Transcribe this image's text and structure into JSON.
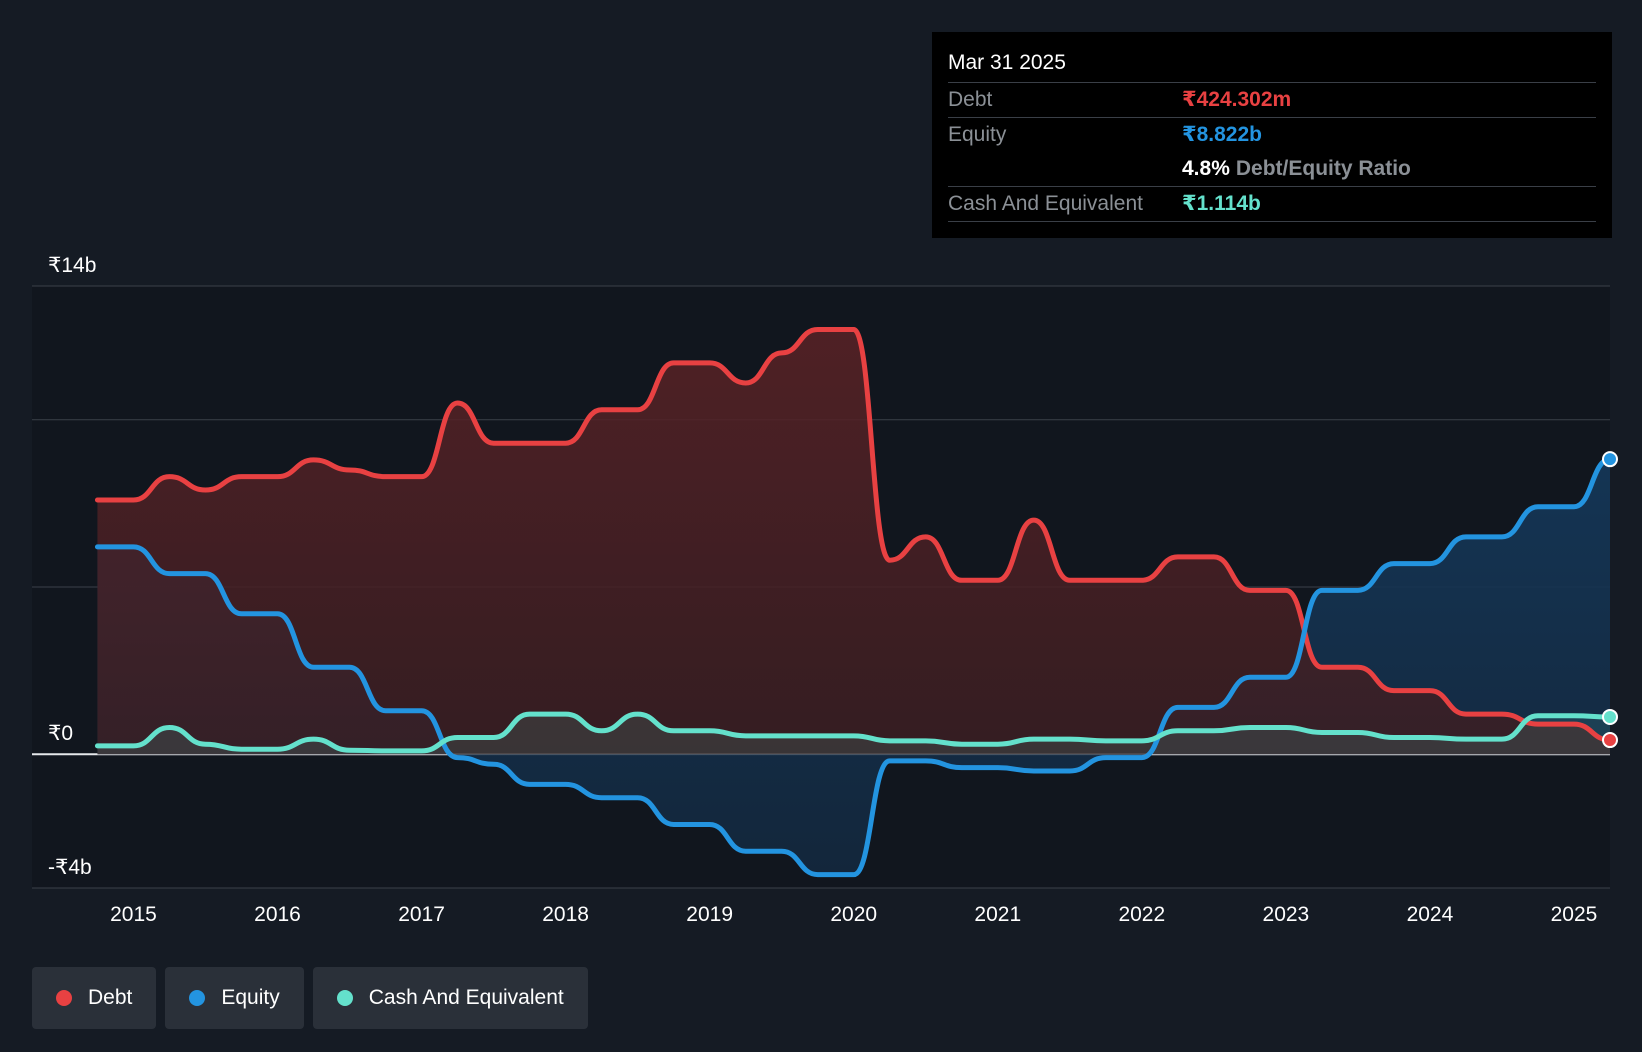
{
  "tooltip": {
    "date": "Mar 31 2025",
    "debt_label": "Debt",
    "debt_value": "₹424.302m",
    "equity_label": "Equity",
    "equity_value": "₹8.822b",
    "ratio_value": "4.8%",
    "ratio_label": "Debt/Equity Ratio",
    "cash_label": "Cash And Equivalent",
    "cash_value": "₹1.114b"
  },
  "colors": {
    "debt": "#e84142",
    "equity": "#2394e0",
    "cash": "#64e1cc",
    "background": "#151b24",
    "grid": "#3a4049"
  },
  "legend": [
    {
      "label": "Debt",
      "color": "#e84142"
    },
    {
      "label": "Equity",
      "color": "#2394e0"
    },
    {
      "label": "Cash And Equivalent",
      "color": "#64e1cc"
    }
  ],
  "chart_data": {
    "type": "area",
    "title": "",
    "xlabel": "",
    "ylabel": "",
    "ylim": [
      -4,
      14
    ],
    "y_ticks": [
      {
        "value": 14,
        "label": "₹14b"
      },
      {
        "value": 0,
        "label": "₹0"
      },
      {
        "value": -4,
        "label": "-₹4b"
      }
    ],
    "grid_values": [
      14,
      10,
      5
    ],
    "xlim": [
      2014.74,
      2025.25
    ],
    "x_ticks": [
      {
        "value": 2015,
        "label": "2015"
      },
      {
        "value": 2016,
        "label": "2016"
      },
      {
        "value": 2017,
        "label": "2017"
      },
      {
        "value": 2018,
        "label": "2018"
      },
      {
        "value": 2019,
        "label": "2019"
      },
      {
        "value": 2020,
        "label": "2020"
      },
      {
        "value": 2021,
        "label": "2021"
      },
      {
        "value": 2022,
        "label": "2022"
      },
      {
        "value": 2023,
        "label": "2023"
      },
      {
        "value": 2024,
        "label": "2024"
      },
      {
        "value": 2025,
        "label": "2025"
      }
    ],
    "x": [
      2014.75,
      2015.0,
      2015.25,
      2015.5,
      2015.75,
      2016.0,
      2016.25,
      2016.5,
      2016.75,
      2017.0,
      2017.25,
      2017.5,
      2017.75,
      2018.0,
      2018.25,
      2018.5,
      2018.75,
      2019.0,
      2019.25,
      2019.5,
      2019.75,
      2020.0,
      2020.25,
      2020.5,
      2020.75,
      2021.0,
      2021.25,
      2021.5,
      2021.75,
      2022.0,
      2022.25,
      2022.5,
      2022.75,
      2023.0,
      2023.25,
      2023.5,
      2023.75,
      2024.0,
      2024.25,
      2024.5,
      2024.75,
      2025.0,
      2025.25
    ],
    "series": [
      {
        "name": "Debt",
        "color": "#e84142",
        "values": [
          7.6,
          7.6,
          8.3,
          7.9,
          8.3,
          8.3,
          8.8,
          8.5,
          8.3,
          8.3,
          10.5,
          9.3,
          9.3,
          9.3,
          10.3,
          10.3,
          11.7,
          11.7,
          11.1,
          12.0,
          12.7,
          12.7,
          5.8,
          6.5,
          5.2,
          5.2,
          7.0,
          5.2,
          5.2,
          5.2,
          5.9,
          5.9,
          4.9,
          4.9,
          2.6,
          2.6,
          1.9,
          1.9,
          1.2,
          1.2,
          0.9,
          0.9,
          0.424
        ]
      },
      {
        "name": "Equity",
        "color": "#2394e0",
        "values": [
          6.2,
          6.2,
          5.4,
          5.4,
          4.2,
          4.2,
          2.6,
          2.6,
          1.3,
          1.3,
          -0.1,
          -0.3,
          -0.9,
          -0.9,
          -1.3,
          -1.3,
          -2.1,
          -2.1,
          -2.9,
          -2.9,
          -3.6,
          -3.6,
          -0.2,
          -0.2,
          -0.4,
          -0.4,
          -0.5,
          -0.5,
          -0.1,
          -0.1,
          1.4,
          1.4,
          2.3,
          2.3,
          4.9,
          4.9,
          5.7,
          5.7,
          6.5,
          6.5,
          7.4,
          7.4,
          8.822
        ]
      },
      {
        "name": "Cash And Equivalent",
        "color": "#64e1cc",
        "values": [
          0.25,
          0.25,
          0.8,
          0.3,
          0.15,
          0.15,
          0.45,
          0.12,
          0.1,
          0.1,
          0.5,
          0.5,
          1.2,
          1.2,
          0.7,
          1.2,
          0.7,
          0.7,
          0.55,
          0.55,
          0.55,
          0.55,
          0.4,
          0.4,
          0.3,
          0.3,
          0.45,
          0.45,
          0.4,
          0.4,
          0.7,
          0.7,
          0.8,
          0.8,
          0.65,
          0.65,
          0.5,
          0.5,
          0.45,
          0.45,
          1.15,
          1.15,
          1.114
        ]
      }
    ]
  }
}
